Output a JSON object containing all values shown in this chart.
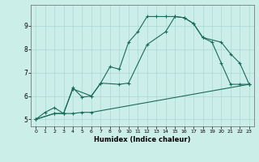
{
  "title": "",
  "xlabel": "Humidex (Indice chaleur)",
  "background_color": "#cceee8",
  "grid_color": "#aad8d2",
  "line_color": "#1a6b5a",
  "xlim": [
    -0.5,
    23.5
  ],
  "ylim": [
    4.7,
    9.9
  ],
  "xticks": [
    0,
    1,
    2,
    3,
    4,
    5,
    6,
    7,
    8,
    9,
    10,
    11,
    12,
    13,
    14,
    15,
    16,
    17,
    18,
    19,
    20,
    21,
    22,
    23
  ],
  "yticks": [
    5,
    6,
    7,
    8,
    9
  ],
  "line1_x": [
    0,
    1,
    2,
    3,
    4,
    5,
    6,
    7,
    8,
    9,
    10,
    11,
    12,
    13,
    14,
    15,
    16,
    17,
    18,
    19,
    20,
    21,
    22,
    23
  ],
  "line1_y": [
    5.0,
    5.3,
    5.5,
    5.25,
    6.35,
    5.95,
    6.0,
    6.55,
    7.25,
    7.15,
    8.3,
    8.75,
    9.4,
    9.4,
    9.4,
    9.4,
    9.35,
    9.1,
    8.5,
    8.3,
    7.4,
    6.5,
    6.5,
    6.5
  ],
  "line2_x": [
    0,
    2,
    3,
    4,
    6,
    7,
    9,
    10,
    12,
    14,
    15,
    16,
    17,
    18,
    20,
    21,
    22,
    23
  ],
  "line2_y": [
    5.0,
    5.25,
    5.25,
    6.3,
    6.0,
    6.55,
    6.5,
    6.55,
    8.2,
    8.75,
    9.4,
    9.35,
    9.1,
    8.5,
    8.3,
    7.8,
    7.4,
    6.5
  ],
  "line3_x": [
    0,
    2,
    3,
    4,
    5,
    6,
    23
  ],
  "line3_y": [
    5.0,
    5.25,
    5.25,
    5.25,
    5.3,
    5.3,
    6.5
  ]
}
